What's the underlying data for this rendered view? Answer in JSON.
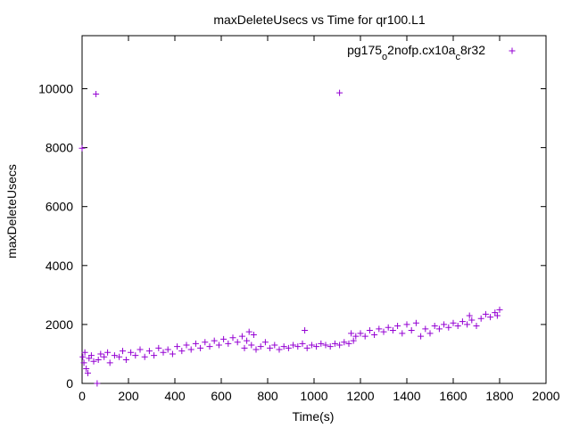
{
  "chart_data": {
    "type": "scatter",
    "title": "maxDeleteUsecs vs Time for qr100.L1",
    "xlabel": "Time(s)",
    "ylabel": "maxDeleteUsecs",
    "xlim": [
      0,
      2000
    ],
    "ylim": [
      0,
      11800
    ],
    "xticks": [
      0,
      200,
      400,
      600,
      800,
      1000,
      1200,
      1400,
      1600,
      1800,
      2000
    ],
    "yticks": [
      0,
      2000,
      4000,
      6000,
      8000,
      10000
    ],
    "grid": false,
    "legend_position": "top-right",
    "marker": "plus",
    "color": "#9400d3",
    "series": [
      {
        "name": "pg175_o2nofp.cx10a_c8r32",
        "points": [
          [
            0,
            7980
          ],
          [
            60,
            9820
          ],
          [
            65,
            0
          ],
          [
            1110,
            9860
          ],
          [
            3,
            900
          ],
          [
            8,
            700
          ],
          [
            12,
            1050
          ],
          [
            18,
            500
          ],
          [
            25,
            350
          ],
          [
            30,
            850
          ],
          [
            40,
            950
          ],
          [
            50,
            750
          ],
          [
            70,
            800
          ],
          [
            80,
            1000
          ],
          [
            95,
            900
          ],
          [
            110,
            1050
          ],
          [
            120,
            700
          ],
          [
            140,
            950
          ],
          [
            160,
            900
          ],
          [
            175,
            1100
          ],
          [
            190,
            800
          ],
          [
            210,
            1050
          ],
          [
            230,
            950
          ],
          [
            250,
            1150
          ],
          [
            270,
            900
          ],
          [
            290,
            1100
          ],
          [
            310,
            950
          ],
          [
            330,
            1200
          ],
          [
            350,
            1050
          ],
          [
            370,
            1150
          ],
          [
            390,
            1000
          ],
          [
            410,
            1250
          ],
          [
            430,
            1100
          ],
          [
            450,
            1300
          ],
          [
            470,
            1150
          ],
          [
            490,
            1350
          ],
          [
            510,
            1200
          ],
          [
            530,
            1400
          ],
          [
            550,
            1250
          ],
          [
            570,
            1450
          ],
          [
            590,
            1300
          ],
          [
            610,
            1500
          ],
          [
            630,
            1350
          ],
          [
            650,
            1550
          ],
          [
            670,
            1400
          ],
          [
            690,
            1600
          ],
          [
            700,
            1200
          ],
          [
            710,
            1450
          ],
          [
            720,
            1750
          ],
          [
            730,
            1300
          ],
          [
            740,
            1650
          ],
          [
            750,
            1150
          ],
          [
            770,
            1250
          ],
          [
            790,
            1400
          ],
          [
            810,
            1200
          ],
          [
            830,
            1300
          ],
          [
            850,
            1150
          ],
          [
            870,
            1250
          ],
          [
            890,
            1200
          ],
          [
            910,
            1300
          ],
          [
            930,
            1250
          ],
          [
            950,
            1350
          ],
          [
            960,
            1800
          ],
          [
            970,
            1200
          ],
          [
            990,
            1300
          ],
          [
            1010,
            1250
          ],
          [
            1030,
            1350
          ],
          [
            1050,
            1300
          ],
          [
            1070,
            1250
          ],
          [
            1090,
            1350
          ],
          [
            1110,
            1300
          ],
          [
            1130,
            1400
          ],
          [
            1150,
            1350
          ],
          [
            1160,
            1700
          ],
          [
            1170,
            1450
          ],
          [
            1180,
            1600
          ],
          [
            1200,
            1700
          ],
          [
            1220,
            1600
          ],
          [
            1240,
            1800
          ],
          [
            1260,
            1650
          ],
          [
            1280,
            1850
          ],
          [
            1300,
            1750
          ],
          [
            1320,
            1900
          ],
          [
            1340,
            1800
          ],
          [
            1360,
            1950
          ],
          [
            1380,
            1700
          ],
          [
            1400,
            2000
          ],
          [
            1420,
            1800
          ],
          [
            1440,
            2050
          ],
          [
            1460,
            1600
          ],
          [
            1480,
            1850
          ],
          [
            1500,
            1700
          ],
          [
            1520,
            1950
          ],
          [
            1540,
            1850
          ],
          [
            1560,
            2000
          ],
          [
            1580,
            1900
          ],
          [
            1600,
            2050
          ],
          [
            1620,
            1950
          ],
          [
            1640,
            2100
          ],
          [
            1660,
            2000
          ],
          [
            1670,
            2300
          ],
          [
            1680,
            2150
          ],
          [
            1700,
            1950
          ],
          [
            1720,
            2200
          ],
          [
            1740,
            2350
          ],
          [
            1760,
            2250
          ],
          [
            1780,
            2400
          ],
          [
            1790,
            2300
          ],
          [
            1800,
            2500
          ]
        ]
      }
    ]
  }
}
